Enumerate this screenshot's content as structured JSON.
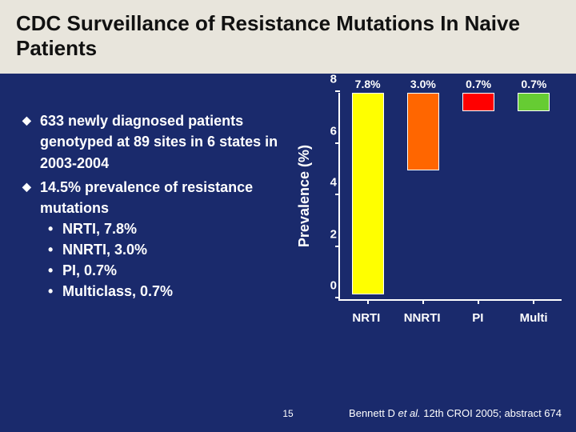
{
  "background_color": "#1a2a6c",
  "title_band_bg": "#e8e5dc",
  "title_color": "#111111",
  "text_color": "#ffffff",
  "title": "CDC Surveillance of Resistance Mutations In Naive Patients",
  "bullets": {
    "b1": "633 newly diagnosed patients genotyped at 89 sites in 6 states in 2003-2004",
    "b2": "14.5% prevalence of resistance mutations",
    "sub1": "NRTI, 7.8%",
    "sub2": "NNRTI, 3.0%",
    "sub3": "PI, 0.7%",
    "sub4": "Multiclass, 0.7%"
  },
  "chart": {
    "type": "bar",
    "ylabel": "Prevalence (%)",
    "ymin": 0,
    "ymax": 8,
    "ytick_step": 2,
    "yticks": [
      {
        "pos": 0,
        "label": "0"
      },
      {
        "pos": 25,
        "label": "2"
      },
      {
        "pos": 50,
        "label": "4"
      },
      {
        "pos": 75,
        "label": "6"
      },
      {
        "pos": 100,
        "label": "8"
      }
    ],
    "bar_border": "#ffffff",
    "bars": [
      {
        "cat": "NRTI",
        "value": 7.8,
        "pct": 97.5,
        "color": "#ffff00",
        "label": "7.8%"
      },
      {
        "cat": "NNRTI",
        "value": 3.0,
        "pct": 37.5,
        "color": "#ff6600",
        "label": "3.0%"
      },
      {
        "cat": "PI",
        "value": 0.7,
        "pct": 8.75,
        "color": "#ff0000",
        "label": "0.7%"
      },
      {
        "cat": "Multi",
        "value": 0.7,
        "pct": 8.75,
        "color": "#66cc33",
        "label": "0.7%"
      }
    ]
  },
  "page_number": "15",
  "citation": {
    "author": "Bennett D",
    "etal": " et al.",
    "rest": " 12th CROI 2005; abstract 674"
  }
}
